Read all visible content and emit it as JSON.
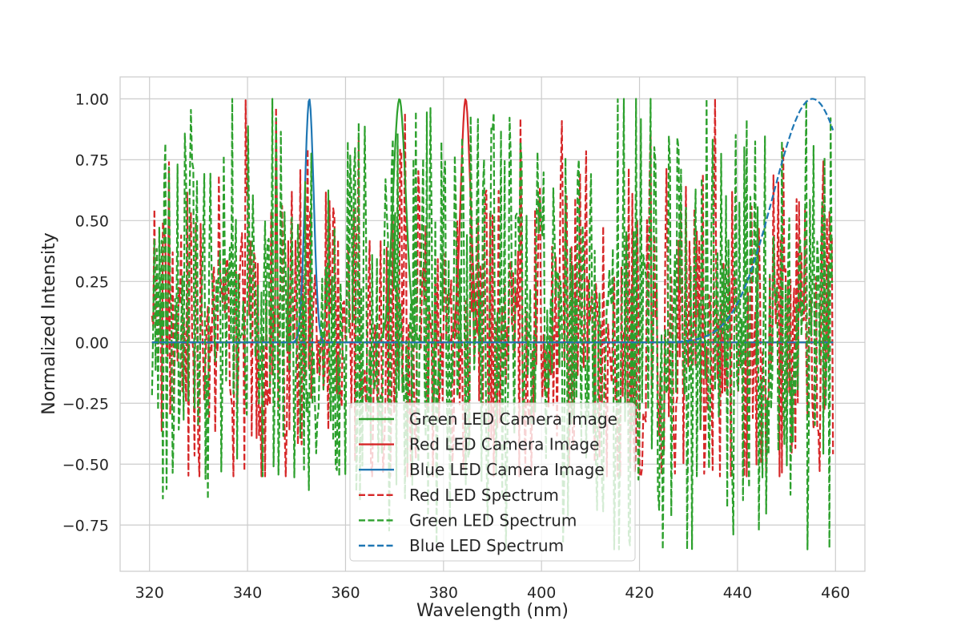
{
  "chart_data": {
    "type": "line",
    "title": "",
    "xlabel": "Wavelength (nm)",
    "ylabel": "Normalized Intensity",
    "xlim": [
      314,
      466
    ],
    "ylim": [
      -0.94,
      1.09
    ],
    "xticks": [
      320,
      340,
      360,
      380,
      400,
      420,
      440,
      460
    ],
    "yticks": [
      -0.75,
      -0.5,
      -0.25,
      0.0,
      0.25,
      0.5,
      0.75,
      1.0
    ],
    "xtick_labels": [
      "320",
      "340",
      "360",
      "380",
      "400",
      "420",
      "440",
      "460"
    ],
    "ytick_labels": [
      "−0.75",
      "−0.50",
      "−0.25",
      "0.00",
      "0.25",
      "0.50",
      "0.75",
      "1.00"
    ],
    "grid": true,
    "legend_position": "lower-center",
    "series": [
      {
        "name": "Green LED Camera Image",
        "color": "#2ca02c",
        "style": "solid",
        "shape": "gaussian",
        "peak_x": 371,
        "peak_y": 1.0,
        "sigma": 1.3,
        "baseline": 0.0
      },
      {
        "name": "Red LED Camera Image",
        "color": "#d62728",
        "style": "solid",
        "shape": "gaussian",
        "peak_x": 384.5,
        "peak_y": 1.0,
        "sigma": 1.0,
        "baseline": 0.0
      },
      {
        "name": "Blue LED Camera Image",
        "color": "#1f77b4",
        "style": "solid",
        "shape": "gaussian",
        "peak_x": 352.6,
        "peak_y": 1.0,
        "sigma": 0.9,
        "baseline": 0.0
      },
      {
        "name": "Red LED Spectrum",
        "color": "#d62728",
        "style": "dashed",
        "shape": "noise",
        "x_range": [
          320.5,
          459.5
        ],
        "mean": 0.05,
        "spread": 0.2,
        "min": -0.55,
        "max": 1.0,
        "spike_x": 435.5,
        "spike_y": 1.0
      },
      {
        "name": "Green LED Spectrum",
        "color": "#2ca02c",
        "style": "dashed",
        "shape": "noise",
        "x_range": [
          320.5,
          459.5
        ],
        "mean": 0.07,
        "spread": 0.27,
        "min": -0.85,
        "max": 1.0
      },
      {
        "name": "Blue LED Spectrum",
        "color": "#1f77b4",
        "style": "dashed",
        "shape": "gaussian",
        "x_range": [
          320.5,
          459.5
        ],
        "peak_x": 455.3,
        "peak_y": 1.0,
        "sigma": 8.0,
        "baseline": 0.0
      }
    ]
  }
}
